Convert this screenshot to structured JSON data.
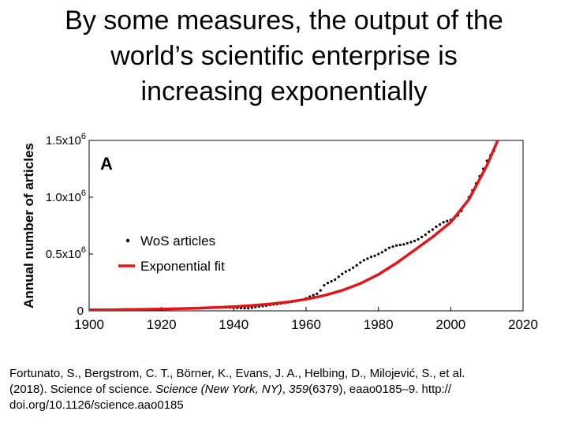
{
  "slide": {
    "title_lines": [
      "By some measures, the output of the",
      "world’s scientific enterprise is",
      "increasing exponentially"
    ]
  },
  "chart_data": {
    "type": "scatter",
    "panel_label": "A",
    "xlabel": "",
    "ylabel": "Annual number of articles",
    "xlim": [
      1900,
      2020
    ],
    "ylim": [
      0,
      1500000
    ],
    "x_ticks": [
      "1900",
      "1920",
      "1940",
      "1960",
      "1980",
      "2000",
      "2020"
    ],
    "y_ticks": [
      {
        "base": "0",
        "exp": ""
      },
      {
        "base": "0.5x10",
        "exp": "6"
      },
      {
        "base": "1.0x10",
        "exp": "6"
      },
      {
        "base": "1.5x10",
        "exp": "6"
      }
    ],
    "grid": false,
    "legend_position": "middle-left",
    "series": [
      {
        "name": "WoS articles",
        "style": "dots",
        "color": "#000000",
        "x": [
          1900,
          1901,
          1902,
          1903,
          1904,
          1905,
          1906,
          1907,
          1908,
          1909,
          1910,
          1911,
          1912,
          1913,
          1914,
          1915,
          1916,
          1917,
          1918,
          1919,
          1920,
          1921,
          1922,
          1923,
          1924,
          1925,
          1926,
          1927,
          1928,
          1929,
          1930,
          1931,
          1932,
          1933,
          1934,
          1935,
          1936,
          1937,
          1938,
          1939,
          1940,
          1941,
          1942,
          1943,
          1944,
          1945,
          1946,
          1947,
          1948,
          1949,
          1950,
          1951,
          1952,
          1953,
          1954,
          1955,
          1956,
          1957,
          1958,
          1959,
          1960,
          1961,
          1962,
          1963,
          1964,
          1965,
          1966,
          1967,
          1968,
          1969,
          1970,
          1971,
          1972,
          1973,
          1974,
          1975,
          1976,
          1977,
          1978,
          1979,
          1980,
          1981,
          1982,
          1983,
          1984,
          1985,
          1986,
          1987,
          1988,
          1989,
          1990,
          1991,
          1992,
          1993,
          1994,
          1995,
          1996,
          1997,
          1998,
          1999,
          2000,
          2001,
          2002,
          2003,
          2004,
          2005,
          2006,
          2007,
          2008,
          2009,
          2010,
          2011,
          2012
        ],
        "y": [
          6000,
          6000,
          7000,
          7000,
          8000,
          8000,
          9000,
          9000,
          10000,
          10000,
          11000,
          11000,
          12000,
          12000,
          12000,
          11000,
          10000,
          10000,
          11000,
          13000,
          15000,
          16000,
          17000,
          18000,
          19000,
          20000,
          21000,
          22000,
          23000,
          24000,
          25000,
          26000,
          27000,
          28000,
          28000,
          29000,
          30000,
          31000,
          32000,
          30000,
          28000,
          26000,
          24000,
          22000,
          22000,
          26000,
          33000,
          38000,
          42000,
          46000,
          52000,
          56000,
          60000,
          65000,
          70000,
          75000,
          80000,
          85000,
          90000,
          95000,
          110000,
          125000,
          138000,
          150000,
          180000,
          225000,
          245000,
          260000,
          275000,
          300000,
          325000,
          345000,
          360000,
          380000,
          400000,
          425000,
          445000,
          460000,
          475000,
          485000,
          500000,
          515000,
          535000,
          555000,
          565000,
          575000,
          580000,
          585000,
          595000,
          605000,
          615000,
          630000,
          650000,
          670000,
          695000,
          715000,
          740000,
          760000,
          780000,
          790000,
          800000,
          815000,
          840000,
          880000,
          940000,
          1000000,
          1060000,
          1120000,
          1185000,
          1250000,
          1320000,
          1370000,
          1410000
        ]
      },
      {
        "name": "Exponential fit",
        "style": "line",
        "color": "#e0161b",
        "x": [
          1900,
          1905,
          1910,
          1915,
          1920,
          1925,
          1930,
          1935,
          1940,
          1945,
          1950,
          1955,
          1960,
          1965,
          1970,
          1975,
          1980,
          1985,
          1990,
          1995,
          2000,
          2005,
          2010,
          2013
        ],
        "y": [
          8000,
          9000,
          11000,
          13000,
          15000,
          19000,
          23000,
          29000,
          37000,
          47000,
          60000,
          78000,
          102000,
          135000,
          180000,
          240000,
          320000,
          420000,
          535000,
          650000,
          780000,
          980000,
          1280000,
          1500000
        ]
      }
    ]
  },
  "citation": {
    "line1": "Fortunato, S., Bergstrom, C. T., Börner, K., Evans, J. A., Helbing, D., Milojević, S., et al.",
    "line2_pre": "(2018). Science of science. ",
    "line2_journal": "Science (New York, NY)",
    "line2_mid": ", ",
    "line2_volume": "359",
    "line2_post": "(6379), eaao0185–9. http://",
    "line3": "doi.org/10.1126/science.aao0185"
  }
}
